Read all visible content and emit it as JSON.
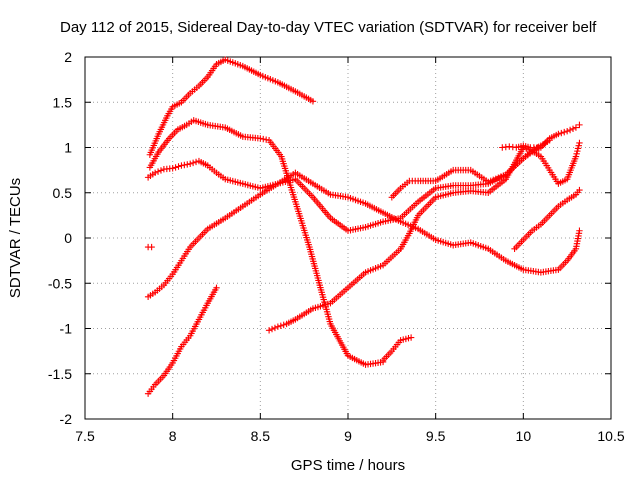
{
  "chart_data": {
    "type": "scatter",
    "title": "Day 112 of 2015, Sidereal Day-to-day VTEC variation (SDTVAR) for receiver belf",
    "xlabel": "GPS time / hours",
    "ylabel": "SDTVAR / TECUs",
    "xlim": [
      7.5,
      10.5
    ],
    "ylim": [
      -2,
      2
    ],
    "xticks": [
      7.5,
      8,
      8.5,
      9,
      9.5,
      10,
      10.5
    ],
    "xtick_labels": [
      "7.5",
      "8",
      "8.5",
      "9",
      "9.5",
      "10",
      "10.5"
    ],
    "yticks": [
      -2,
      -1.5,
      -1,
      -0.5,
      0,
      0.5,
      1,
      1.5,
      2
    ],
    "ytick_labels": [
      "-2",
      "-1.5",
      "-1",
      "-0.5",
      "0",
      "0.5",
      "1",
      "1.5",
      "2"
    ],
    "grid": true,
    "marker": "+",
    "color": "#ff0000",
    "series": [
      {
        "x": [
          7.87,
          7.92,
          7.97,
          8.0,
          8.05,
          8.1,
          8.15,
          8.2,
          8.25,
          8.3,
          8.4,
          8.5,
          8.6,
          8.7,
          8.8
        ],
        "y": [
          0.92,
          1.15,
          1.35,
          1.45,
          1.5,
          1.6,
          1.68,
          1.78,
          1.92,
          1.97,
          1.9,
          1.8,
          1.72,
          1.62,
          1.51
        ]
      },
      {
        "x": [
          7.87,
          7.92,
          7.98,
          8.03,
          8.08,
          8.12,
          8.2,
          8.3,
          8.4,
          8.5,
          8.55,
          8.62,
          8.7,
          8.78,
          8.85,
          8.9,
          9.0,
          9.1,
          9.2
        ],
        "y": [
          0.78,
          0.95,
          1.1,
          1.2,
          1.25,
          1.3,
          1.25,
          1.22,
          1.12,
          1.1,
          1.08,
          0.9,
          0.4,
          -0.1,
          -0.6,
          -0.95,
          -1.3,
          -1.4,
          -1.37
        ]
      },
      {
        "x": [
          9.2,
          9.25,
          9.3,
          9.36
        ],
        "y": [
          -1.35,
          -1.25,
          -1.13,
          -1.1
        ]
      },
      {
        "x": [
          7.86,
          7.9,
          7.95,
          8.0,
          8.05,
          8.1,
          8.15,
          8.2,
          8.25,
          8.3,
          8.4,
          8.5,
          8.6,
          8.7,
          8.8,
          8.9,
          9.0,
          9.1,
          9.2,
          9.3,
          9.4,
          9.5,
          9.6,
          9.7,
          9.8,
          9.9,
          10.0,
          10.1,
          10.2,
          10.25,
          10.3,
          10.32
        ],
        "y": [
          0.67,
          0.72,
          0.76,
          0.77,
          0.8,
          0.82,
          0.85,
          0.8,
          0.72,
          0.65,
          0.6,
          0.55,
          0.6,
          0.72,
          0.6,
          0.48,
          0.45,
          0.38,
          0.28,
          0.18,
          0.1,
          -0.02,
          -0.08,
          -0.05,
          -0.12,
          -0.25,
          -0.35,
          -0.38,
          -0.35,
          -0.25,
          -0.12,
          0.08
        ]
      },
      {
        "x": [
          7.86,
          7.9,
          7.95,
          8.0,
          8.05,
          8.1,
          8.15,
          8.2,
          8.3,
          8.4,
          8.5,
          8.6,
          8.7,
          8.8,
          8.9,
          9.0,
          9.1,
          9.2,
          9.3,
          9.4,
          9.5,
          9.6,
          9.7,
          9.8,
          9.9,
          10.0,
          10.05,
          10.1,
          10.15
        ],
        "y": [
          -0.65,
          -0.6,
          -0.52,
          -0.4,
          -0.25,
          -0.1,
          0.0,
          0.1,
          0.22,
          0.35,
          0.48,
          0.6,
          0.65,
          0.45,
          0.22,
          0.08,
          0.12,
          0.18,
          0.22,
          0.4,
          0.55,
          0.58,
          0.58,
          0.6,
          0.7,
          0.88,
          0.97,
          1.02,
          1.08
        ]
      },
      {
        "x": [
          8.55,
          8.6,
          8.65,
          8.7,
          8.8,
          8.9,
          9.0,
          9.1,
          9.2,
          9.3,
          9.35,
          9.4,
          9.5,
          9.6,
          9.7,
          9.8,
          9.9,
          10.0,
          10.05,
          10.1,
          10.15,
          10.2,
          10.25,
          10.3,
          10.32
        ],
        "y": [
          -1.02,
          -0.98,
          -0.95,
          -0.9,
          -0.78,
          -0.72,
          -0.55,
          -0.38,
          -0.3,
          -0.12,
          0.05,
          0.25,
          0.45,
          0.5,
          0.52,
          0.5,
          0.65,
          1.0,
          0.96,
          0.9,
          0.75,
          0.6,
          0.65,
          0.9,
          1.05
        ]
      },
      {
        "x": [
          9.25,
          9.3,
          9.35,
          9.4,
          9.5,
          9.6,
          9.7,
          9.8,
          9.9,
          10.0,
          10.05,
          10.1,
          10.15,
          10.2,
          10.25,
          10.3,
          10.32
        ],
        "y": [
          0.45,
          0.55,
          0.63,
          0.63,
          0.63,
          0.75,
          0.75,
          0.62,
          0.7,
          0.88,
          0.95,
          1.0,
          1.1,
          1.15,
          1.18,
          1.22,
          1.25
        ]
      },
      {
        "x": [
          9.88,
          9.92,
          9.96,
          10.0,
          10.04,
          10.08
        ],
        "y": [
          1.0,
          1.01,
          1.0,
          1.02,
          1.0,
          1.0
        ]
      },
      {
        "x": [
          9.95,
          10.0,
          10.05,
          10.1,
          10.15,
          10.2,
          10.25,
          10.3,
          10.32
        ],
        "y": [
          -0.12,
          -0.02,
          0.08,
          0.15,
          0.25,
          0.35,
          0.42,
          0.48,
          0.53
        ]
      },
      {
        "x": [
          7.86,
          7.9,
          7.95,
          8.0,
          8.05,
          8.1,
          8.15,
          8.2,
          8.25
        ],
        "y": [
          -1.72,
          -1.62,
          -1.52,
          -1.38,
          -1.2,
          -1.08,
          -0.9,
          -0.72,
          -0.55
        ]
      },
      {
        "x": [
          7.86,
          7.88
        ],
        "y": [
          -0.1,
          -0.1
        ]
      }
    ]
  }
}
